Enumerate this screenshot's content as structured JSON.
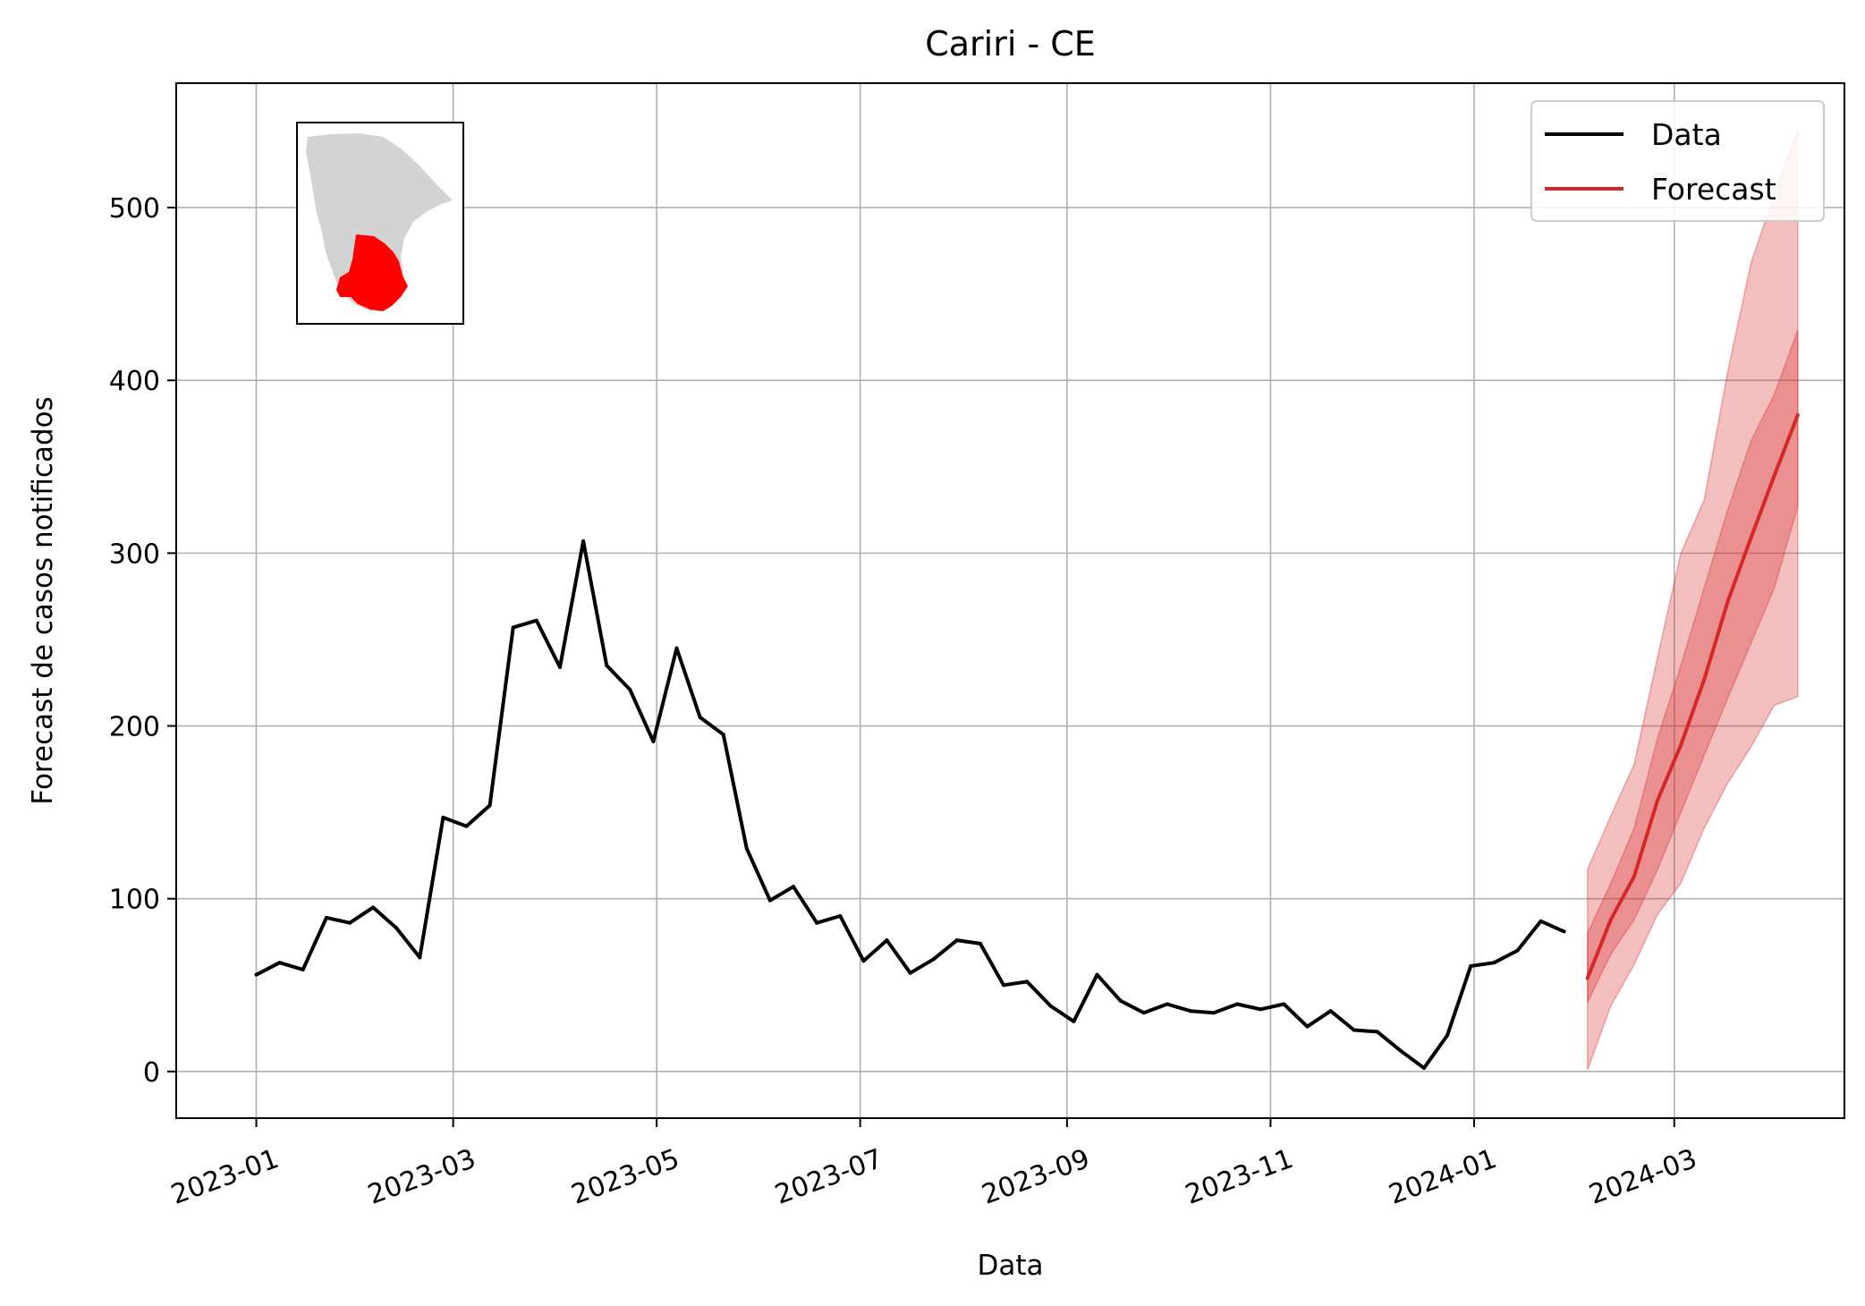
{
  "chart_data": {
    "type": "line",
    "title": "Cariri - CE",
    "xlabel": "Data",
    "ylabel": "Forecast de casos notificados",
    "x_tick_labels": [
      "2023-01",
      "2023-03",
      "2023-05",
      "2023-07",
      "2023-09",
      "2023-11",
      "2024-01",
      "2024-03"
    ],
    "x_ticks": [
      "2023-01-01",
      "2023-03-01",
      "2023-05-01",
      "2023-07-01",
      "2023-09-01",
      "2023-11-01",
      "2024-01-01",
      "2024-03-01"
    ],
    "y_ticks": [
      0,
      100,
      200,
      300,
      400,
      500
    ],
    "ylim": [
      -27,
      572
    ],
    "xlim": [
      "2022-12-08",
      "2024-04-21"
    ],
    "grid": true,
    "legend_position": "top-right",
    "series": [
      {
        "name": "Data",
        "color": "#000000",
        "x": [
          "2023-01-01",
          "2023-01-08",
          "2023-01-15",
          "2023-01-22",
          "2023-01-29",
          "2023-02-05",
          "2023-02-12",
          "2023-02-19",
          "2023-02-26",
          "2023-03-05",
          "2023-03-12",
          "2023-03-19",
          "2023-03-26",
          "2023-04-02",
          "2023-04-09",
          "2023-04-16",
          "2023-04-23",
          "2023-04-30",
          "2023-05-07",
          "2023-05-14",
          "2023-05-21",
          "2023-05-28",
          "2023-06-04",
          "2023-06-11",
          "2023-06-18",
          "2023-06-25",
          "2023-07-02",
          "2023-07-09",
          "2023-07-16",
          "2023-07-23",
          "2023-07-30",
          "2023-08-06",
          "2023-08-13",
          "2023-08-20",
          "2023-08-27",
          "2023-09-03",
          "2023-09-10",
          "2023-09-17",
          "2023-09-24",
          "2023-10-01",
          "2023-10-08",
          "2023-10-15",
          "2023-10-22",
          "2023-10-29",
          "2023-11-05",
          "2023-11-12",
          "2023-11-19",
          "2023-11-26",
          "2023-12-03",
          "2023-12-10",
          "2023-12-17",
          "2023-12-24",
          "2023-12-31",
          "2024-01-07",
          "2024-01-14",
          "2024-01-21",
          "2024-01-28"
        ],
        "values": [
          56,
          63,
          59,
          89,
          86,
          95,
          83,
          66,
          147,
          142,
          154,
          257,
          261,
          234,
          307,
          235,
          221,
          191,
          245,
          205,
          195,
          129,
          99,
          107,
          86,
          90,
          64,
          76,
          57,
          65,
          76,
          74,
          50,
          52,
          38,
          29,
          56,
          41,
          34,
          39,
          35,
          34,
          39,
          36,
          39,
          26,
          35,
          24,
          23,
          12,
          2,
          21,
          61,
          63,
          70,
          87,
          81
        ]
      },
      {
        "name": "Forecast",
        "color": "#d62728",
        "x": [
          "2024-02-04",
          "2024-02-11",
          "2024-02-18",
          "2024-02-25",
          "2024-03-03",
          "2024-03-10",
          "2024-03-17",
          "2024-03-24",
          "2024-03-31",
          "2024-04-07"
        ],
        "values": [
          54,
          88,
          113,
          157,
          189,
          227,
          272,
          309,
          345,
          380
        ],
        "inner_band": {
          "lower": [
            40,
            68,
            88,
            117,
            150,
            183,
            216,
            248,
            280,
            327
          ],
          "upper": [
            80,
            109,
            141,
            193,
            235,
            280,
            325,
            365,
            392,
            429
          ]
        },
        "outer_band": {
          "lower": [
            1,
            38,
            62,
            91,
            109,
            141,
            167,
            188,
            212,
            217
          ],
          "upper": [
            117,
            148,
            178,
            240,
            300,
            331,
            405,
            468,
            508,
            545
          ]
        }
      }
    ]
  },
  "inset_map": {
    "state_color": "#d3d3d3",
    "highlight_color": "#ff0000"
  }
}
